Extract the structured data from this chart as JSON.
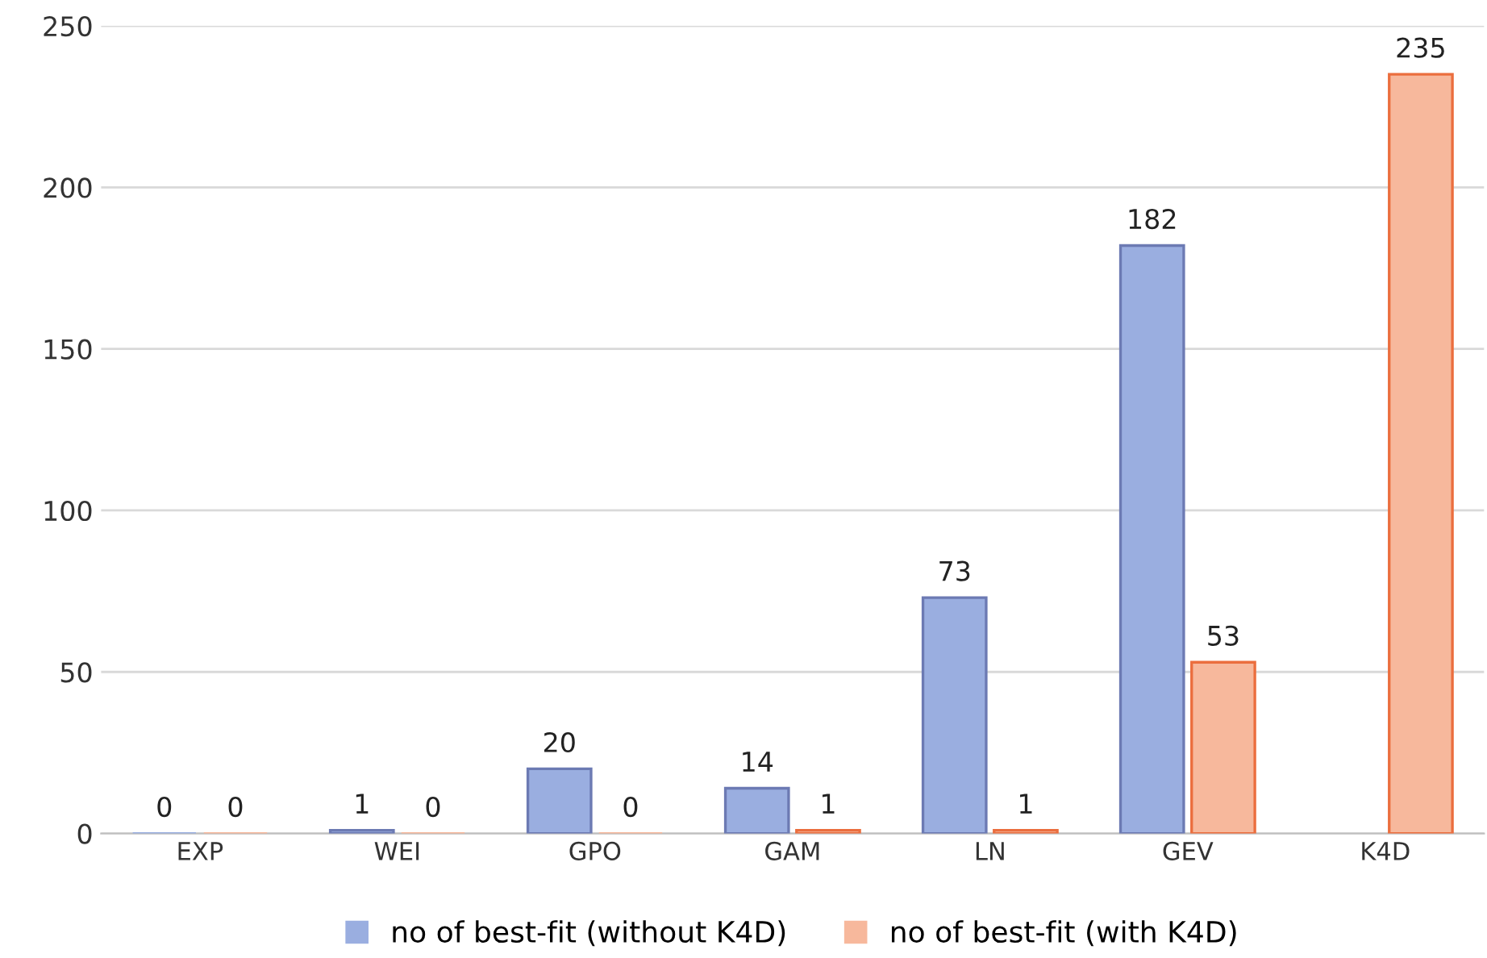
{
  "chart_data": {
    "type": "bar",
    "categories": [
      "EXP",
      "WEI",
      "GPO",
      "GAM",
      "LN",
      "GEV",
      "K4D"
    ],
    "series": [
      {
        "name": "no of best-fit (without K4D)",
        "color": "#9aaee0",
        "values": [
          0,
          1,
          20,
          14,
          73,
          182,
          null
        ],
        "value_labels": [
          "0",
          "1",
          "20",
          "14",
          "73",
          "182",
          null
        ]
      },
      {
        "name": "no of best-fit (with K4D)",
        "color": "#f7b89c",
        "values": [
          0,
          0,
          0,
          1,
          1,
          53,
          235
        ],
        "value_labels": [
          "0",
          "0",
          "0",
          "1",
          "1",
          "53",
          "235"
        ]
      }
    ],
    "ylim": [
      0,
      250
    ],
    "yticks": [
      0,
      50,
      100,
      150,
      200,
      250
    ],
    "grid": "y",
    "legend": "bottom"
  }
}
